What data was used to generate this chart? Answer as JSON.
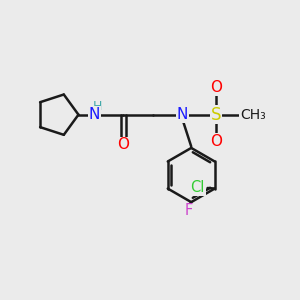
{
  "background_color": "#ebebeb",
  "bond_color": "#1a1a1a",
  "bond_width": 1.8,
  "colors": {
    "N": "#1a1aff",
    "H": "#44aaaa",
    "O": "#ff0000",
    "S": "#cccc00",
    "Cl": "#33cc33",
    "F": "#cc44cc",
    "C": "#1a1a1a"
  },
  "fig_width": 3.0,
  "fig_height": 3.0,
  "dpi": 100
}
